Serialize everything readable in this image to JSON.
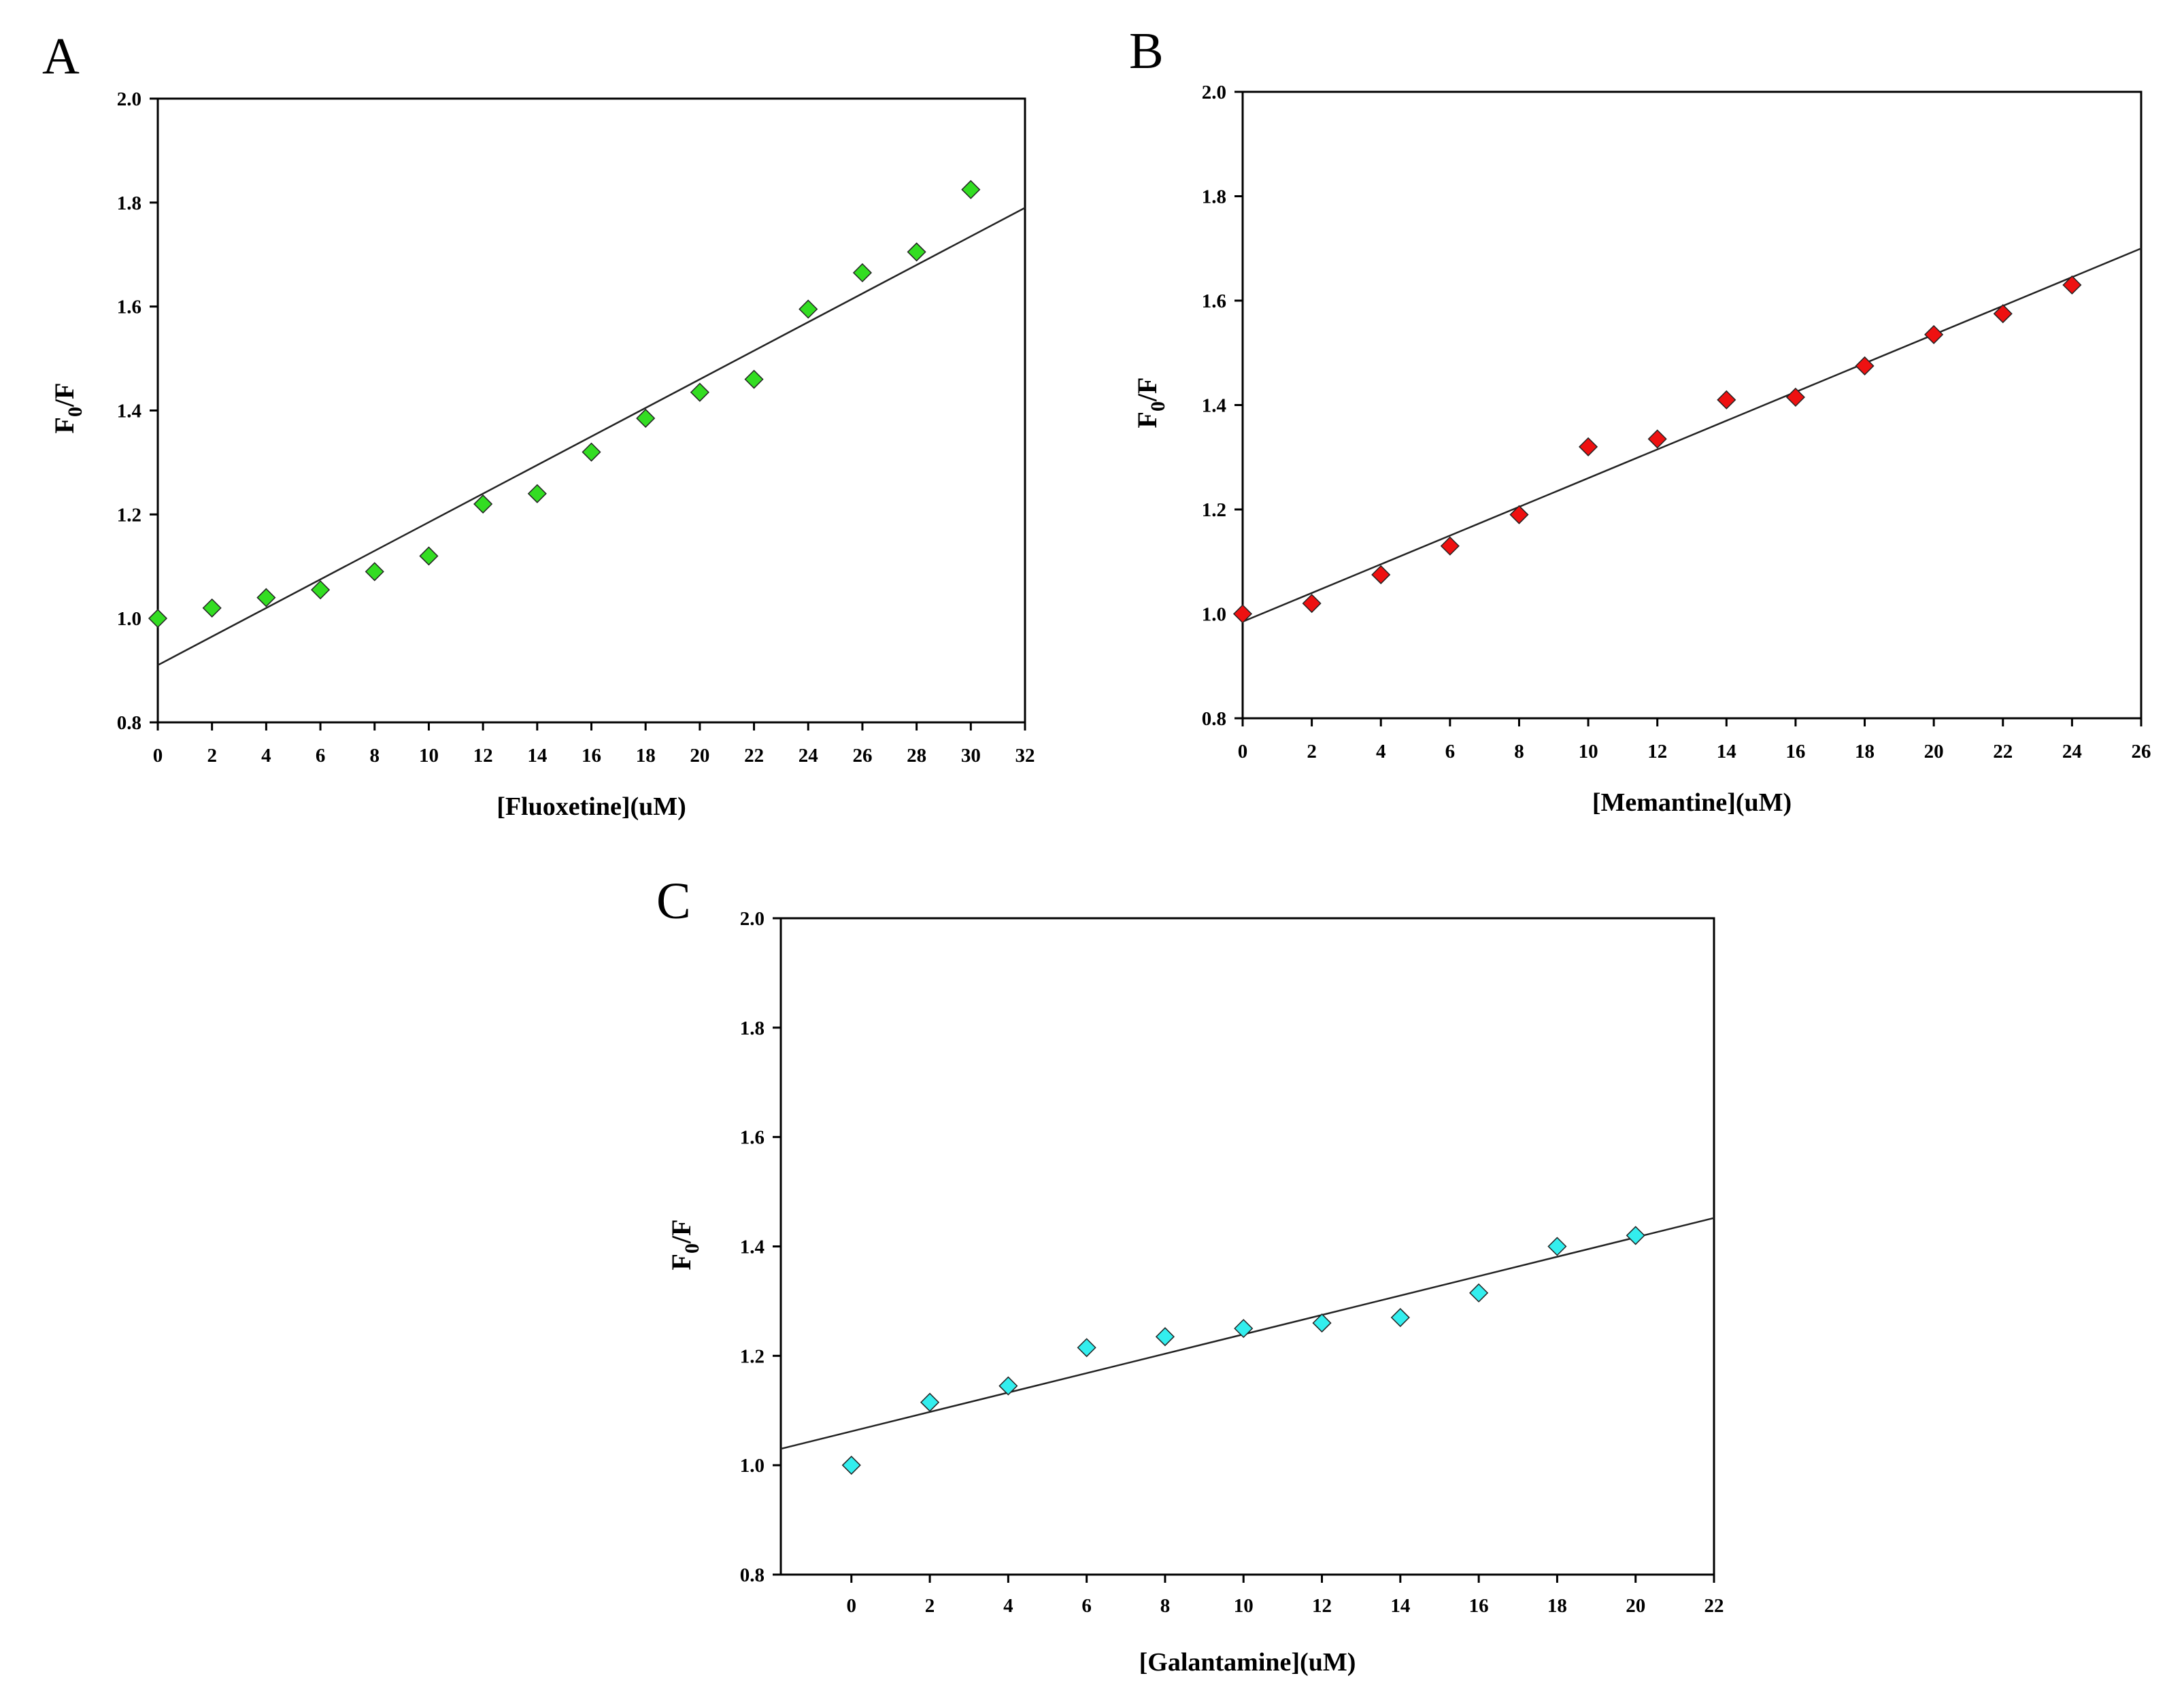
{
  "chart_data": [
    {
      "panel": "A",
      "type": "scatter",
      "xlabel": "[Fluoxetine](uM)",
      "ylabel": "F0/F",
      "ylabel_main": "F",
      "ylabel_sub": "0",
      "ylabel_tail": "/F",
      "xlim": [
        0,
        32
      ],
      "ylim": [
        0.8,
        2.0
      ],
      "xticks": [
        "0",
        "2",
        "4",
        "6",
        "8",
        "10",
        "12",
        "14",
        "16",
        "18",
        "20",
        "22",
        "24",
        "26",
        "28",
        "30",
        "32"
      ],
      "yticks": [
        "0.8",
        "1.0",
        "1.2",
        "1.4",
        "1.6",
        "1.8",
        "2.0"
      ],
      "marker_color": "#33dd22",
      "x": [
        0,
        2,
        4,
        6,
        8,
        10,
        12,
        14,
        16,
        18,
        20,
        22,
        24,
        26,
        28,
        30
      ],
      "y": [
        1.0,
        1.02,
        1.04,
        1.055,
        1.09,
        1.12,
        1.22,
        1.24,
        1.32,
        1.385,
        1.435,
        1.46,
        1.595,
        1.665,
        1.705,
        1.825
      ],
      "fit": {
        "x": [
          0,
          32
        ],
        "y": [
          0.91,
          1.79
        ]
      }
    },
    {
      "panel": "B",
      "type": "scatter",
      "xlabel": "[Memantine](uM)",
      "ylabel": "F0/F",
      "ylabel_main": "F",
      "ylabel_sub": "0",
      "ylabel_tail": "/F",
      "xlim": [
        0,
        26
      ],
      "ylim": [
        0.8,
        2.0
      ],
      "xticks": [
        "0",
        "2",
        "4",
        "6",
        "8",
        "10",
        "12",
        "14",
        "16",
        "18",
        "20",
        "22",
        "24",
        "26"
      ],
      "yticks": [
        "0.8",
        "1.0",
        "1.2",
        "1.4",
        "1.6",
        "1.8",
        "2.0"
      ],
      "marker_color": "#ee1111",
      "x": [
        0,
        2,
        4,
        6,
        8,
        10,
        12,
        14,
        16,
        18,
        20,
        22,
        24
      ],
      "y": [
        1.0,
        1.02,
        1.075,
        1.13,
        1.19,
        1.32,
        1.335,
        1.41,
        1.415,
        1.475,
        1.535,
        1.575,
        1.63
      ],
      "fit": {
        "x": [
          0,
          26
        ],
        "y": [
          0.985,
          1.7
        ]
      }
    },
    {
      "panel": "C",
      "type": "scatter",
      "xlabel": "[Galantamine](uM)",
      "ylabel": "F0/F",
      "ylabel_main": "F",
      "ylabel_sub": "0",
      "ylabel_tail": "/F",
      "xlim": [
        -1.8,
        22
      ],
      "ylim": [
        0.8,
        2.0
      ],
      "xticks": [
        "0",
        "2",
        "4",
        "6",
        "8",
        "10",
        "12",
        "14",
        "16",
        "18",
        "20",
        "22"
      ],
      "yticks": [
        "0.8",
        "1.0",
        "1.2",
        "1.4",
        "1.6",
        "1.8",
        "2.0"
      ],
      "marker_color": "#33eeee",
      "x": [
        0,
        2,
        4,
        6,
        8,
        10,
        12,
        14,
        16,
        18,
        20
      ],
      "y": [
        1.0,
        1.115,
        1.145,
        1.215,
        1.235,
        1.25,
        1.26,
        1.27,
        1.315,
        1.4,
        1.42
      ],
      "fit": {
        "x": [
          -1.8,
          22
        ],
        "y": [
          1.03,
          1.452
        ]
      }
    }
  ]
}
